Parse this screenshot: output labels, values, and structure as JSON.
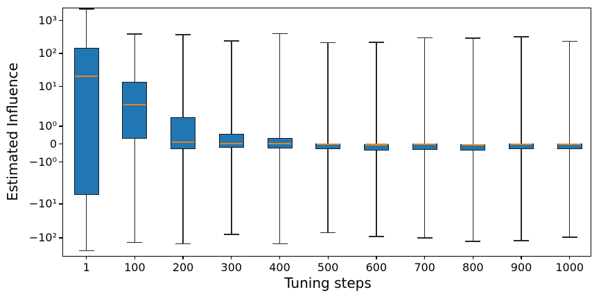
{
  "figure": {
    "xlabel": "Tuning steps",
    "ylabel": "Estimated Influence"
  },
  "chart_data": {
    "type": "boxplot",
    "title": "",
    "xlabel": "Tuning steps",
    "ylabel": "Estimated Influence",
    "yscale": "symlog",
    "linthresh": 1,
    "grid": false,
    "legend": null,
    "ylim_approx": [
      -300,
      2500
    ],
    "categories": [
      "1",
      "100",
      "200",
      "300",
      "400",
      "500",
      "600",
      "700",
      "800",
      "900",
      "1000"
    ],
    "yticks": [
      {
        "label": "10³",
        "value": 1000
      },
      {
        "label": "10²",
        "value": 100
      },
      {
        "label": "10¹",
        "value": 10
      },
      {
        "label": "10⁰",
        "value": 1
      },
      {
        "label": "0",
        "value": 0
      },
      {
        "label": "−10⁰",
        "value": -1
      },
      {
        "label": "−10¹",
        "value": -10
      },
      {
        "label": "−10²",
        "value": -100
      }
    ],
    "series": [
      {
        "category": "1",
        "whislo": -240,
        "q1": -6.0,
        "med": 20.0,
        "q3": 145.0,
        "whishi": 2200
      },
      {
        "category": "100",
        "whislo": -135,
        "q1": 0.3,
        "med": 3.5,
        "q3": 14.0,
        "whishi": 390
      },
      {
        "category": "200",
        "whislo": -150,
        "q1": -0.27,
        "med": 0.1,
        "q3": 1.7,
        "whishi": 370
      },
      {
        "category": "300",
        "whislo": -80,
        "q1": -0.2,
        "med": 0.03,
        "q3": 0.55,
        "whishi": 240
      },
      {
        "category": "400",
        "whislo": -150,
        "q1": -0.25,
        "med": 0.02,
        "q3": 0.35,
        "whishi": 400
      },
      {
        "category": "500",
        "whislo": -70,
        "q1": -0.28,
        "med": -0.01,
        "q3": 0.02,
        "whishi": 210
      },
      {
        "category": "600",
        "whislo": -90,
        "q1": -0.35,
        "med": -0.04,
        "q3": 0.0,
        "whishi": 215
      },
      {
        "category": "700",
        "whislo": -100,
        "q1": -0.32,
        "med": -0.02,
        "q3": 0.02,
        "whishi": 300
      },
      {
        "category": "800",
        "whislo": -125,
        "q1": -0.35,
        "med": -0.05,
        "q3": 0.0,
        "whishi": 290
      },
      {
        "category": "900",
        "whislo": -120,
        "q1": -0.28,
        "med": -0.01,
        "q3": 0.03,
        "whishi": 320
      },
      {
        "category": "1000",
        "whislo": -95,
        "q1": -0.3,
        "med": -0.02,
        "q3": 0.02,
        "whishi": 235
      }
    ],
    "colors": {
      "box_fill": "#2077b4",
      "box_edge": "#1b1b1b",
      "whisker": "#262626",
      "median": "#e8821e",
      "text": "#000000",
      "background": "#ffffff"
    }
  }
}
